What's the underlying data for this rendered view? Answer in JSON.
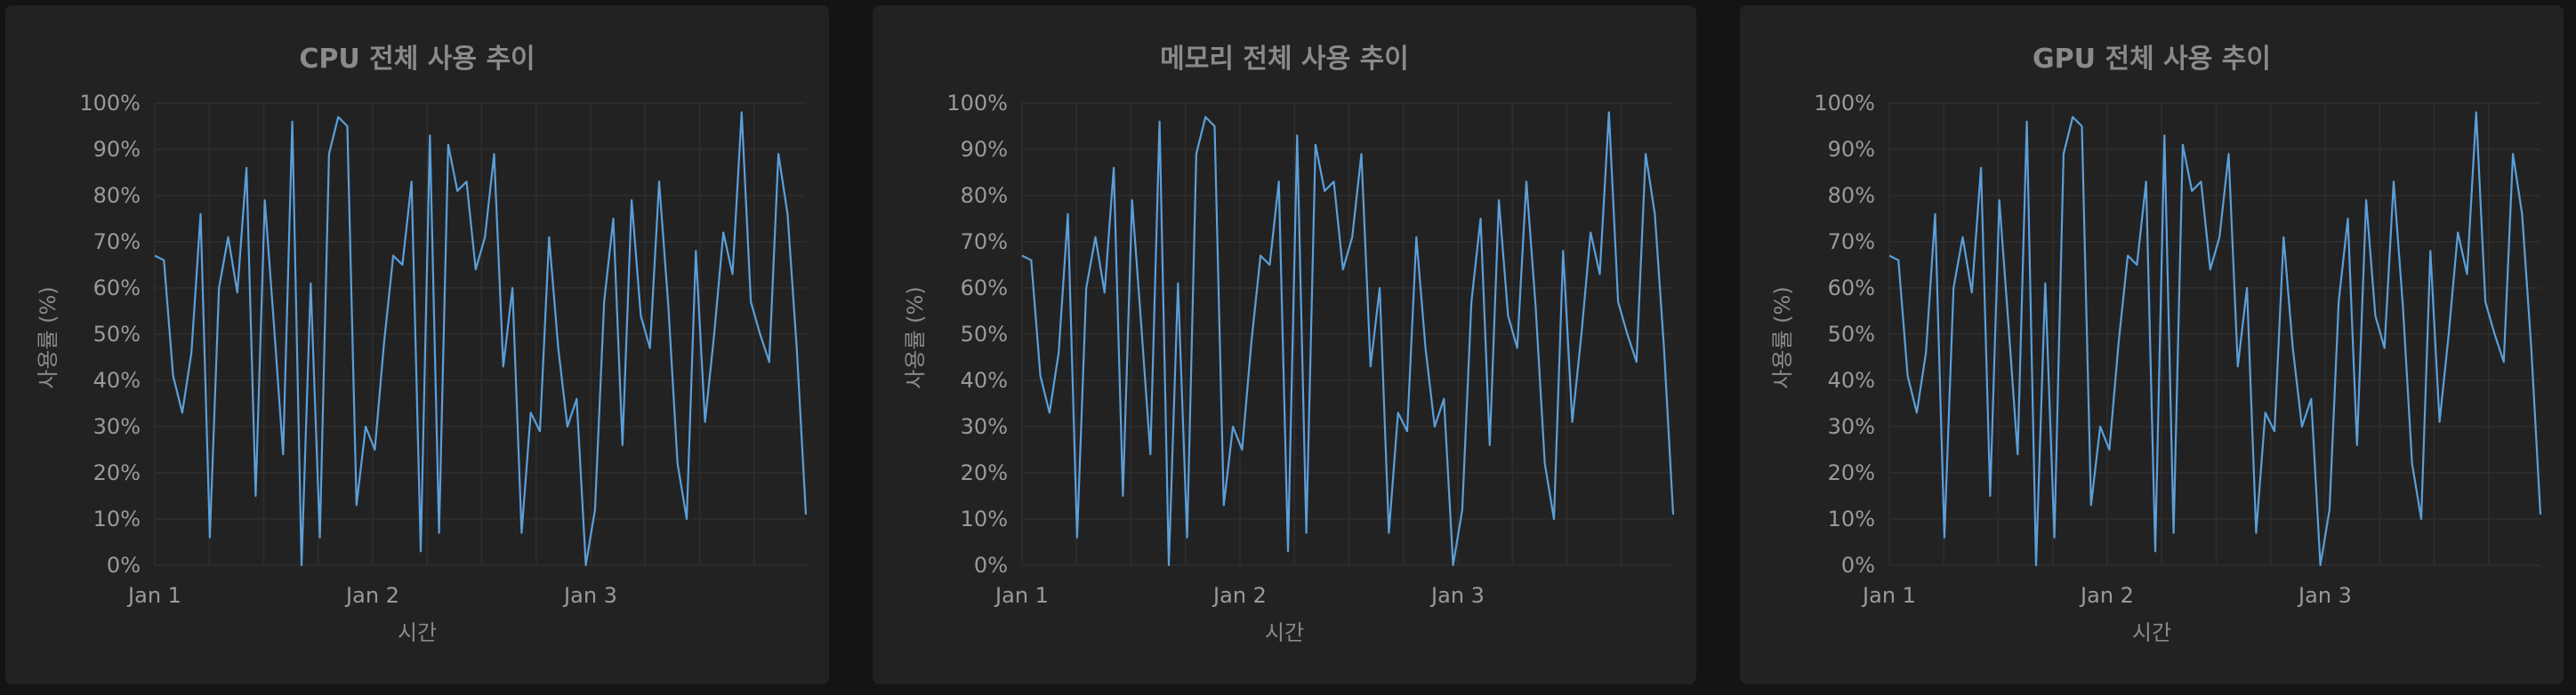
{
  "chart_data": [
    {
      "type": "line",
      "title": "CPU 전체 사용 추이",
      "xlabel": "시간",
      "ylabel": "사용률 (%)",
      "ylim": [
        0,
        100
      ],
      "yticks": [
        "0%",
        "10%",
        "20%",
        "30%",
        "40%",
        "50%",
        "60%",
        "70%",
        "80%",
        "90%",
        "100%"
      ],
      "xticks": [
        "Jan 1",
        "Jan 2",
        "Jan 3"
      ],
      "grid": true,
      "colors": {
        "series": "#5b9fd8"
      },
      "series": [
        {
          "values": [
            67,
            66,
            41,
            33,
            46,
            76,
            6,
            60,
            71,
            59,
            86,
            15,
            79,
            52,
            24,
            96,
            0,
            61,
            6,
            89,
            97,
            95,
            13,
            30,
            25,
            48,
            67,
            65,
            83,
            3,
            93,
            7,
            91,
            81,
            83,
            64,
            71,
            89,
            43,
            60,
            7,
            33,
            29,
            71,
            47,
            30,
            36,
            0,
            12,
            57,
            75,
            26,
            79,
            54,
            47,
            83,
            56,
            22,
            10,
            68,
            31,
            50,
            72,
            63,
            98,
            57,
            50,
            44,
            89,
            76,
            47,
            11
          ]
        }
      ]
    },
    {
      "type": "line",
      "title": "메모리 전체 사용 추이",
      "xlabel": "시간",
      "ylabel": "사용률 (%)",
      "ylim": [
        0,
        100
      ],
      "yticks": [
        "0%",
        "10%",
        "20%",
        "30%",
        "40%",
        "50%",
        "60%",
        "70%",
        "80%",
        "90%",
        "100%"
      ],
      "xticks": [
        "Jan 1",
        "Jan 2",
        "Jan 3"
      ],
      "grid": true,
      "colors": {
        "series": "#5b9fd8"
      },
      "series": [
        {
          "values": [
            67,
            66,
            41,
            33,
            46,
            76,
            6,
            60,
            71,
            59,
            86,
            15,
            79,
            52,
            24,
            96,
            0,
            61,
            6,
            89,
            97,
            95,
            13,
            30,
            25,
            48,
            67,
            65,
            83,
            3,
            93,
            7,
            91,
            81,
            83,
            64,
            71,
            89,
            43,
            60,
            7,
            33,
            29,
            71,
            47,
            30,
            36,
            0,
            12,
            57,
            75,
            26,
            79,
            54,
            47,
            83,
            56,
            22,
            10,
            68,
            31,
            50,
            72,
            63,
            98,
            57,
            50,
            44,
            89,
            76,
            47,
            11
          ]
        }
      ]
    },
    {
      "type": "line",
      "title": "GPU 전체 사용 추이",
      "xlabel": "시간",
      "ylabel": "사용률 (%)",
      "ylim": [
        0,
        100
      ],
      "yticks": [
        "0%",
        "10%",
        "20%",
        "30%",
        "40%",
        "50%",
        "60%",
        "70%",
        "80%",
        "90%",
        "100%"
      ],
      "xticks": [
        "Jan 1",
        "Jan 2",
        "Jan 3"
      ],
      "grid": true,
      "colors": {
        "series": "#5b9fd8"
      },
      "series": [
        {
          "values": [
            67,
            66,
            41,
            33,
            46,
            76,
            6,
            60,
            71,
            59,
            86,
            15,
            79,
            52,
            24,
            96,
            0,
            61,
            6,
            89,
            97,
            95,
            13,
            30,
            25,
            48,
            67,
            65,
            83,
            3,
            93,
            7,
            91,
            81,
            83,
            64,
            71,
            89,
            43,
            60,
            7,
            33,
            29,
            71,
            47,
            30,
            36,
            0,
            12,
            57,
            75,
            26,
            79,
            54,
            47,
            83,
            56,
            22,
            10,
            68,
            31,
            50,
            72,
            63,
            98,
            57,
            50,
            44,
            89,
            76,
            47,
            11
          ]
        }
      ]
    }
  ]
}
